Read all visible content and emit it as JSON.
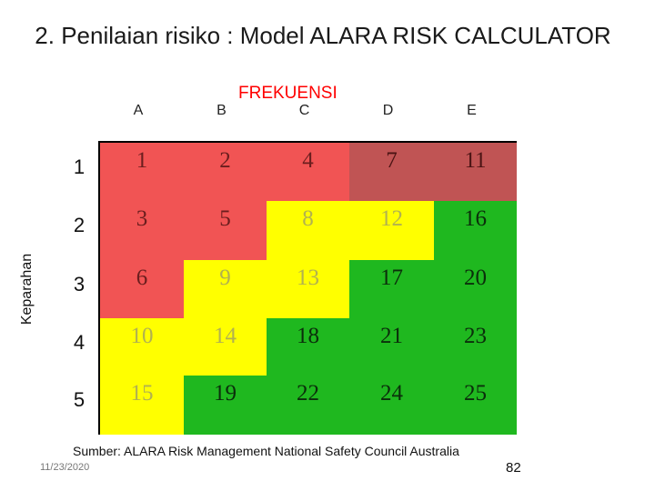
{
  "title": "2. Penilaian risiko : Model ALARA RISK CALCULATOR",
  "frequency_label": "FREKUENSI",
  "severity_label": "Keparahan",
  "columns": [
    "A",
    "B",
    "C",
    "D",
    "E"
  ],
  "rows": [
    {
      "label": "1",
      "cells": [
        {
          "v": "1",
          "c": "red"
        },
        {
          "v": "2",
          "c": "red"
        },
        {
          "v": "4",
          "c": "red"
        },
        {
          "v": "7",
          "c": "dark"
        },
        {
          "v": "11",
          "c": "dark"
        }
      ]
    },
    {
      "label": "2",
      "cells": [
        {
          "v": "3",
          "c": "red"
        },
        {
          "v": "5",
          "c": "red"
        },
        {
          "v": "8",
          "c": "yellow"
        },
        {
          "v": "12",
          "c": "yellow"
        },
        {
          "v": "16",
          "c": "green"
        }
      ]
    },
    {
      "label": "3",
      "cells": [
        {
          "v": "6",
          "c": "red"
        },
        {
          "v": "9",
          "c": "yellow"
        },
        {
          "v": "13",
          "c": "yellow"
        },
        {
          "v": "17",
          "c": "green"
        },
        {
          "v": "20",
          "c": "green"
        }
      ]
    },
    {
      "label": "4",
      "cells": [
        {
          "v": "10",
          "c": "yellow"
        },
        {
          "v": "14",
          "c": "yellow"
        },
        {
          "v": "18",
          "c": "green"
        },
        {
          "v": "21",
          "c": "green"
        },
        {
          "v": "23",
          "c": "green"
        }
      ]
    },
    {
      "label": "5",
      "cells": [
        {
          "v": "15",
          "c": "yellow"
        },
        {
          "v": "19",
          "c": "green"
        },
        {
          "v": "22",
          "c": "green"
        },
        {
          "v": "24",
          "c": "green"
        },
        {
          "v": "25",
          "c": "green"
        }
      ]
    }
  ],
  "colors": {
    "red": "#f15454",
    "dark": "#c05454",
    "yellow": "#ffff00",
    "green": "#1fb81f"
  },
  "source": "Sumber: ALARA Risk Management National Safety Council Australia",
  "date": "11/23/2020",
  "page_number": "82"
}
